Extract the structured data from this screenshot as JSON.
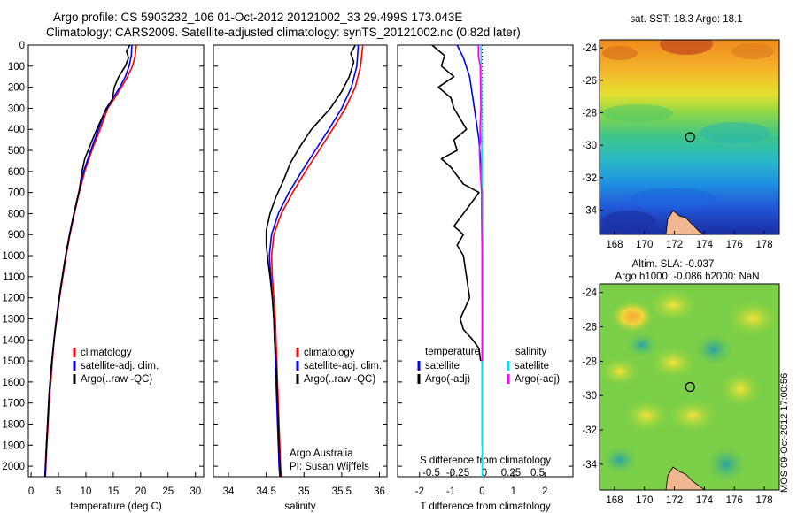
{
  "title": {
    "line1": "Argo profile: CS 5903232_106 01-Oct-2012 20121002_33 29.499S 173.043E",
    "line2": "Climatology: CARS2009. Satellite-adjusted climatology: synTS_20121002.nc (0.82d later)"
  },
  "colors": {
    "climatology": "#ff0000",
    "satellite": "#0000ff",
    "argo": "#000000",
    "sal_satellite": "#00e5ee",
    "sal_argo": "#ff00ff"
  },
  "chart_data": [
    {
      "id": "temperature",
      "type": "line",
      "xlabel": "temperature (deg C)",
      "ylabel": "",
      "xlim": [
        -0.5,
        31.5
      ],
      "xticks": [
        0,
        5,
        10,
        15,
        20,
        25,
        30
      ],
      "ylim": [
        0,
        2050
      ],
      "yticks": [
        0,
        100,
        200,
        300,
        400,
        500,
        600,
        700,
        800,
        900,
        1000,
        1100,
        1200,
        1300,
        1400,
        1500,
        1600,
        1700,
        1800,
        1900,
        2000
      ],
      "legend": [
        "climatology",
        "satellite-adj. clim.",
        "Argo(..raw -QC)"
      ],
      "series": [
        {
          "name": "climatology",
          "color": "#ff0000",
          "points": [
            [
              19.2,
              0
            ],
            [
              19.0,
              50
            ],
            [
              18.5,
              100
            ],
            [
              17.6,
              150
            ],
            [
              16.5,
              200
            ],
            [
              15.3,
              250
            ],
            [
              14.0,
              300
            ],
            [
              12.6,
              400
            ],
            [
              11.1,
              500
            ],
            [
              9.8,
              600
            ],
            [
              8.8,
              700
            ],
            [
              7.9,
              800
            ],
            [
              7.1,
              900
            ],
            [
              6.4,
              1000
            ],
            [
              5.8,
              1100
            ],
            [
              5.2,
              1200
            ],
            [
              4.7,
              1300
            ],
            [
              4.2,
              1400
            ],
            [
              3.9,
              1500
            ],
            [
              3.6,
              1600
            ],
            [
              3.3,
              1700
            ],
            [
              3.1,
              1800
            ],
            [
              2.9,
              1900
            ],
            [
              2.7,
              2000
            ],
            [
              2.6,
              2050
            ]
          ]
        },
        {
          "name": "satellite-adj. clim.",
          "color": "#0000ff",
          "points": [
            [
              18.4,
              0
            ],
            [
              18.3,
              50
            ],
            [
              17.9,
              100
            ],
            [
              17.2,
              150
            ],
            [
              16.2,
              200
            ],
            [
              15.0,
              250
            ],
            [
              13.7,
              300
            ],
            [
              12.3,
              400
            ],
            [
              10.9,
              500
            ],
            [
              9.6,
              600
            ],
            [
              8.7,
              700
            ],
            [
              7.8,
              800
            ],
            [
              7.0,
              900
            ],
            [
              6.3,
              1000
            ],
            [
              5.7,
              1100
            ],
            [
              5.1,
              1200
            ],
            [
              4.6,
              1300
            ],
            [
              4.2,
              1400
            ],
            [
              3.8,
              1500
            ],
            [
              3.5,
              1600
            ],
            [
              3.2,
              1700
            ],
            [
              3.0,
              1800
            ],
            [
              2.8,
              1900
            ],
            [
              2.6,
              2000
            ],
            [
              2.5,
              2050
            ]
          ]
        },
        {
          "name": "Argo(..raw -QC)",
          "color": "#000000",
          "points": [
            [
              18.0,
              0
            ],
            [
              17.4,
              30
            ],
            [
              17.8,
              60
            ],
            [
              17.2,
              100
            ],
            [
              16.0,
              150
            ],
            [
              15.2,
              200
            ],
            [
              14.8,
              260
            ],
            [
              13.4,
              320
            ],
            [
              12.0,
              400
            ],
            [
              11.2,
              450
            ],
            [
              9.8,
              540
            ],
            [
              9.3,
              600
            ],
            [
              8.8,
              690
            ],
            [
              7.9,
              790
            ],
            [
              7.2,
              880
            ],
            [
              6.6,
              960
            ],
            [
              6.0,
              1050
            ],
            [
              5.4,
              1150
            ],
            [
              4.9,
              1250
            ],
            [
              4.4,
              1350
            ],
            [
              4.0,
              1450
            ],
            [
              3.6,
              1550
            ],
            [
              3.3,
              1650
            ],
            [
              3.1,
              1750
            ],
            [
              2.9,
              1850
            ],
            [
              2.7,
              1950
            ],
            [
              2.6,
              2050
            ]
          ]
        }
      ]
    },
    {
      "id": "salinity",
      "type": "line",
      "xlabel": "salinity",
      "xlim": [
        33.8,
        36.1
      ],
      "xticks": [
        34,
        34.5,
        35,
        35.5,
        36
      ],
      "ylim": [
        0,
        2050
      ],
      "legend": [
        "climatology",
        "satellite-adj. clim.",
        "Argo(..raw -QC)"
      ],
      "annotation": [
        "Argo Australia",
        "PI: Susan Wijffels"
      ],
      "series": [
        {
          "name": "climatology",
          "color": "#ff0000",
          "points": [
            [
              35.78,
              0
            ],
            [
              35.75,
              100
            ],
            [
              35.68,
              200
            ],
            [
              35.55,
              300
            ],
            [
              35.38,
              400
            ],
            [
              35.2,
              500
            ],
            [
              35.02,
              600
            ],
            [
              34.85,
              700
            ],
            [
              34.7,
              800
            ],
            [
              34.6,
              900
            ],
            [
              34.57,
              1000
            ],
            [
              34.58,
              1100
            ],
            [
              34.6,
              1200
            ],
            [
              34.62,
              1300
            ],
            [
              34.63,
              1400
            ],
            [
              34.64,
              1500
            ],
            [
              34.65,
              1600
            ],
            [
              34.66,
              1700
            ],
            [
              34.67,
              1800
            ],
            [
              34.68,
              1900
            ],
            [
              34.69,
              2000
            ],
            [
              34.7,
              2050
            ]
          ]
        },
        {
          "name": "satellite-adj. clim.",
          "color": "#0000ff",
          "points": [
            [
              35.72,
              0
            ],
            [
              35.7,
              100
            ],
            [
              35.63,
              200
            ],
            [
              35.5,
              300
            ],
            [
              35.33,
              400
            ],
            [
              35.15,
              500
            ],
            [
              34.97,
              600
            ],
            [
              34.8,
              700
            ],
            [
              34.66,
              800
            ],
            [
              34.57,
              900
            ],
            [
              34.54,
              1000
            ],
            [
              34.56,
              1100
            ],
            [
              34.58,
              1200
            ],
            [
              34.6,
              1300
            ],
            [
              34.61,
              1400
            ],
            [
              34.62,
              1500
            ],
            [
              34.63,
              1600
            ],
            [
              34.64,
              1700
            ],
            [
              34.65,
              1800
            ],
            [
              34.66,
              1900
            ],
            [
              34.67,
              2000
            ],
            [
              34.68,
              2050
            ]
          ]
        },
        {
          "name": "Argo(..raw -QC)",
          "color": "#000000",
          "points": [
            [
              35.68,
              0
            ],
            [
              35.62,
              40
            ],
            [
              35.66,
              80
            ],
            [
              35.6,
              150
            ],
            [
              35.5,
              220
            ],
            [
              35.35,
              300
            ],
            [
              35.1,
              400
            ],
            [
              34.95,
              480
            ],
            [
              34.82,
              560
            ],
            [
              34.72,
              650
            ],
            [
              34.63,
              720
            ],
            [
              34.55,
              800
            ],
            [
              34.5,
              880
            ],
            [
              34.5,
              950
            ],
            [
              34.52,
              1020
            ],
            [
              34.55,
              1100
            ],
            [
              34.58,
              1200
            ],
            [
              34.6,
              1300
            ],
            [
              34.61,
              1400
            ],
            [
              34.63,
              1500
            ],
            [
              34.64,
              1600
            ],
            [
              34.65,
              1700
            ],
            [
              34.66,
              1800
            ],
            [
              34.67,
              1900
            ],
            [
              34.68,
              2000
            ],
            [
              34.69,
              2050
            ]
          ]
        }
      ]
    },
    {
      "id": "differences",
      "type": "line",
      "xlabel": "T difference from climatology",
      "xlabel_top": "S difference from climatology",
      "xlim": [
        -2.7,
        2.9
      ],
      "xticks": [
        -2,
        -1,
        0,
        1,
        2
      ],
      "s_ticks": [
        {
          "v": -0.5,
          "label": "-0.5"
        },
        {
          "v": -0.25,
          "label": "-0.25"
        },
        {
          "v": 0,
          "label": "0"
        },
        {
          "v": 0.25,
          "label": "0.25"
        },
        {
          "v": 0.5,
          "label": "0.5"
        }
      ],
      "ylim": [
        0,
        2050
      ],
      "legend_left": {
        "title": "temperature",
        "items": [
          "satellite",
          "Argo(-adj)"
        ]
      },
      "legend_right": {
        "title": "salinity",
        "items": [
          "satellite",
          "Argo(-adj)"
        ]
      },
      "series": [
        {
          "name": "T satellite",
          "color": "#0000ff",
          "points": [
            [
              -0.8,
              0
            ],
            [
              -0.6,
              60
            ],
            [
              -0.4,
              150
            ],
            [
              -0.3,
              250
            ],
            [
              -0.2,
              350
            ],
            [
              -0.1,
              450
            ],
            [
              -0.05,
              550
            ],
            [
              0,
              700
            ],
            [
              0,
              900
            ],
            [
              0,
              1200
            ],
            [
              0,
              1500
            ],
            [
              0,
              1800
            ],
            [
              0,
              1900
            ]
          ]
        },
        {
          "name": "T Argo(-adj)",
          "color": "#000000",
          "points": [
            [
              -1.6,
              0
            ],
            [
              -1.2,
              50
            ],
            [
              -1.3,
              100
            ],
            [
              -0.9,
              150
            ],
            [
              -1.4,
              200
            ],
            [
              -1.0,
              250
            ],
            [
              -0.9,
              300
            ],
            [
              -0.7,
              350
            ],
            [
              -0.5,
              400
            ],
            [
              -0.9,
              450
            ],
            [
              -0.8,
              500
            ],
            [
              -1.3,
              540
            ],
            [
              -1.0,
              580
            ],
            [
              -0.8,
              620
            ],
            [
              -0.6,
              660
            ],
            [
              -0.1,
              700
            ],
            [
              -0.3,
              740
            ],
            [
              -0.5,
              780
            ],
            [
              -0.7,
              820
            ],
            [
              -0.9,
              860
            ],
            [
              -0.6,
              900
            ],
            [
              -0.8,
              950
            ],
            [
              -0.6,
              1000
            ],
            [
              -0.5,
              1100
            ],
            [
              -0.4,
              1200
            ],
            [
              -0.7,
              1300
            ],
            [
              -0.6,
              1350
            ],
            [
              -0.3,
              1400
            ],
            [
              -0.1,
              1440
            ],
            [
              -0.05,
              1500
            ]
          ]
        },
        {
          "name": "S satellite",
          "color": "#00e5ee",
          "points": [
            [
              -0.04,
              0
            ],
            [
              -0.03,
              100
            ],
            [
              -0.02,
              200
            ],
            [
              -0.02,
              350
            ],
            [
              -0.01,
              500
            ],
            [
              -0.01,
              700
            ],
            [
              0,
              900
            ],
            [
              0,
              1200
            ],
            [
              0,
              1500
            ],
            [
              0,
              1800
            ],
            [
              0,
              2050
            ]
          ]
        },
        {
          "name": "S Argo(-adj)",
          "color": "#ff00ff",
          "points": [
            [
              -0.12,
              0
            ],
            [
              -0.12,
              50
            ],
            [
              -0.06,
              100
            ],
            [
              -0.05,
              200
            ],
            [
              -0.04,
              300
            ],
            [
              -0.07,
              400
            ],
            [
              -0.05,
              450
            ],
            [
              -0.09,
              500
            ],
            [
              -0.06,
              600
            ],
            [
              -0.02,
              700
            ],
            [
              -0.02,
              800
            ],
            [
              -0.01,
              900
            ],
            [
              0,
              1000
            ],
            [
              0,
              1200
            ],
            [
              0.01,
              1300
            ],
            [
              0,
              1400
            ],
            [
              0,
              1500
            ]
          ]
        }
      ]
    },
    {
      "id": "sst_map",
      "type": "heatmap",
      "title": "sat. SST: 18.3 Argo: 18.1",
      "xticks": [
        168,
        170,
        172,
        174,
        176,
        178
      ],
      "yticks": [
        -24,
        -26,
        -28,
        -30,
        -32,
        -34
      ],
      "xlim": [
        167,
        179
      ],
      "ylim": [
        -35.5,
        -23.5
      ],
      "marker": {
        "lon": 173.043,
        "lat": -29.499
      }
    },
    {
      "id": "sla_map",
      "type": "heatmap",
      "title_line1": "Altim. SLA: -0.037",
      "title_line2": "Argo h1000: -0.086 h2000: NaN",
      "xticks": [
        168,
        170,
        172,
        174,
        176,
        178
      ],
      "yticks": [
        -24,
        -26,
        -28,
        -30,
        -32,
        -34
      ],
      "xlim": [
        167,
        179
      ],
      "ylim": [
        -35.5,
        -23.5
      ],
      "marker": {
        "lon": 173.043,
        "lat": -29.499
      }
    }
  ],
  "stamp": "IMOS 09-Oct-2012 17:00:56"
}
